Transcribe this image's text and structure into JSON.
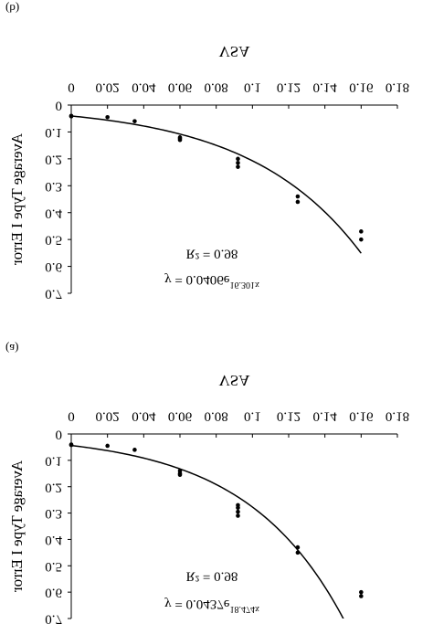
{
  "chart_data": [
    {
      "type": "scatter",
      "panel_label": "(a)",
      "x_label": "VSA",
      "y_label": "Average Type I Error",
      "equation": "y = 0.0437e",
      "exponent": "18.474x",
      "r_squared": "R² = 0.98",
      "trendline": {
        "coefficient": 0.0437,
        "rate": 18.474
      },
      "x": [
        0,
        0,
        0.02,
        0.035,
        0.06,
        0.06,
        0.06,
        0.092,
        0.092,
        0.092,
        0.092,
        0.125,
        0.125,
        0.16,
        0.16
      ],
      "series": [
        {
          "name": "Type I Error",
          "color": "#000000",
          "values": [
            0.04,
            0.042,
            0.045,
            0.06,
            0.14,
            0.15,
            0.155,
            0.27,
            0.28,
            0.295,
            0.31,
            0.43,
            0.45,
            0.6,
            0.615
          ]
        }
      ],
      "xlim": [
        0,
        0.18
      ],
      "xticks": [
        0,
        0.02,
        0.04,
        0.06,
        0.08,
        0.1,
        0.12,
        0.14,
        0.16,
        0.18
      ],
      "ylim": [
        0,
        0.7
      ],
      "yticks": [
        0,
        0.1,
        0.2,
        0.3,
        0.4,
        0.5,
        0.6,
        0.7
      ]
    },
    {
      "type": "scatter",
      "panel_label": "(b)",
      "x_label": "VSA",
      "y_label": "Average Type I Error",
      "equation": "y = 0.0406e",
      "exponent": "16.301x",
      "r_squared": "R² = 0.98",
      "trendline": {
        "coefficient": 0.0406,
        "rate": 16.301
      },
      "x": [
        0,
        0,
        0.02,
        0.035,
        0.06,
        0.06,
        0.06,
        0.092,
        0.092,
        0.092,
        0.125,
        0.125,
        0.16,
        0.16
      ],
      "series": [
        {
          "name": "Type I Error",
          "color": "#000000",
          "values": [
            0.04,
            0.042,
            0.045,
            0.06,
            0.12,
            0.125,
            0.13,
            0.2,
            0.215,
            0.23,
            0.34,
            0.36,
            0.47,
            0.5
          ]
        }
      ],
      "xlim": [
        0,
        0.18
      ],
      "xticks": [
        0,
        0.02,
        0.04,
        0.06,
        0.08,
        0.1,
        0.12,
        0.14,
        0.16,
        0.18
      ],
      "ylim": [
        0,
        0.7
      ],
      "yticks": [
        0,
        0.1,
        0.2,
        0.3,
        0.4,
        0.5,
        0.6,
        0.7
      ]
    }
  ]
}
